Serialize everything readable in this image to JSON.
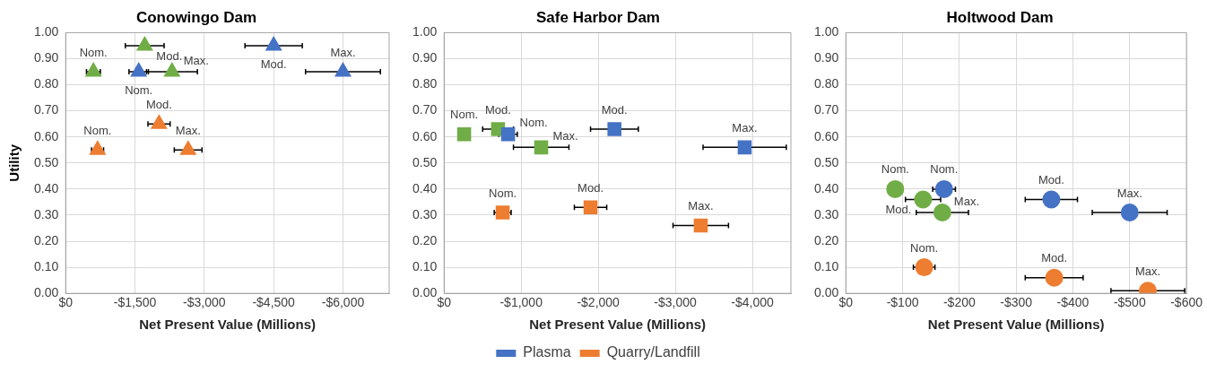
{
  "chart_data": [
    {
      "type": "scatter",
      "title": "Conowingo Dam",
      "xlabel": "Net Present Value (Millions)",
      "ylabel": "Utility",
      "marker": "triangle",
      "grid": true,
      "legend": false,
      "xlim": [
        0,
        -7000
      ],
      "xticks": [
        {
          "value": 0,
          "label": "$0"
        },
        {
          "value": -1500,
          "label": "-$1,500"
        },
        {
          "value": -3000,
          "label": "-$3,000"
        },
        {
          "value": -4500,
          "label": "-$4,500"
        },
        {
          "value": -6000,
          "label": "-$6,000"
        }
      ],
      "ylim": [
        0,
        1
      ],
      "yticks": [
        {
          "value": 0,
          "label": "0.00"
        },
        {
          "value": 0.1,
          "label": "0.10"
        },
        {
          "value": 0.2,
          "label": "0.20"
        },
        {
          "value": 0.3,
          "label": "0.30"
        },
        {
          "value": 0.4,
          "label": "0.40"
        },
        {
          "value": 0.5,
          "label": "0.50"
        },
        {
          "value": 0.6,
          "label": "0.60"
        },
        {
          "value": 0.7,
          "label": "0.70"
        },
        {
          "value": 0.8,
          "label": "0.80"
        },
        {
          "value": 0.9,
          "label": "0.90"
        },
        {
          "value": 1,
          "label": "1.00"
        }
      ],
      "series": [
        {
          "color": "#4472c4",
          "x": [
            -1580,
            -4500,
            -6000
          ],
          "values": [
            0.85,
            0.95,
            0.85
          ],
          "xerrors": [
            210,
            620,
            810
          ]
        },
        {
          "color": "#70ad47",
          "x": [
            -600,
            -1710,
            -2300
          ],
          "values": [
            0.85,
            0.95,
            0.85
          ],
          "xerrors": [
            150,
            420,
            550
          ]
        },
        {
          "color": "#ed7d31",
          "x": [
            -690,
            -2020,
            -2650
          ],
          "values": [
            0.55,
            0.65,
            0.55
          ],
          "xerrors": [
            130,
            240,
            300
          ]
        }
      ],
      "annotations": [
        {
          "text": "Nom.",
          "x": -1580,
          "y": 0.85
        },
        {
          "text": "Mod.",
          "x": -4500,
          "y": 0.95
        },
        {
          "text": "Max.",
          "x": -6000,
          "y": 0.85
        },
        {
          "text": "Nom.",
          "x": -600,
          "y": 0.85
        },
        {
          "text": "Mod.",
          "x": -1710,
          "y": 0.95
        },
        {
          "text": "Max.",
          "x": -2300,
          "y": 0.85
        },
        {
          "text": "Nom.",
          "x": -690,
          "y": 0.55
        },
        {
          "text": "Mod.",
          "x": -2020,
          "y": 0.65
        },
        {
          "text": "Max.",
          "x": -2650,
          "y": 0.55
        }
      ]
    },
    {
      "type": "scatter",
      "title": "Safe Harbor Dam",
      "xlabel": "Net Present Value (Millions)",
      "marker": "square",
      "grid": true,
      "legend": "bottom",
      "xlim": [
        0,
        -4500
      ],
      "xticks": [
        {
          "value": 0,
          "label": "$0"
        },
        {
          "value": -1000,
          "label": "-$1,000"
        },
        {
          "value": -2000,
          "label": "-$2,000"
        },
        {
          "value": -3000,
          "label": "-$3,000"
        },
        {
          "value": -4000,
          "label": "-$4,000"
        }
      ],
      "ylim": [
        0,
        1
      ],
      "yticks": [
        {
          "value": 0,
          "label": "0.00"
        },
        {
          "value": 0.1,
          "label": "0.10"
        },
        {
          "value": 0.2,
          "label": "0.20"
        },
        {
          "value": 0.3,
          "label": "0.30"
        },
        {
          "value": 0.4,
          "label": "0.40"
        },
        {
          "value": 0.5,
          "label": "0.50"
        },
        {
          "value": 0.6,
          "label": "0.60"
        },
        {
          "value": 0.7,
          "label": "0.70"
        },
        {
          "value": 0.8,
          "label": "0.80"
        },
        {
          "value": 0.9,
          "label": "0.90"
        },
        {
          "value": 1,
          "label": "1.00"
        }
      ],
      "series": [
        {
          "name": "Plasma",
          "color": "#4472c4",
          "x": [
            -830,
            -2210,
            -3900
          ],
          "values": [
            0.61,
            0.63,
            0.56
          ],
          "xerrors": [
            120,
            310,
            540
          ]
        },
        {
          "color": "#70ad47",
          "x": [
            -260,
            -700,
            -1260
          ],
          "values": [
            0.61,
            0.63,
            0.56
          ],
          "xerrors": [
            null,
            200,
            360
          ]
        },
        {
          "name": "Quarry/Landfill",
          "color": "#ed7d31",
          "x": [
            -760,
            -1900,
            -3330
          ],
          "values": [
            0.31,
            0.33,
            0.26
          ],
          "xerrors": [
            110,
            210,
            360
          ]
        }
      ],
      "annotations": [
        {
          "text": "Nom.",
          "x": -830,
          "y": 0.61
        },
        {
          "text": "Mod.",
          "x": -2210,
          "y": 0.63
        },
        {
          "text": "Max.",
          "x": -3900,
          "y": 0.56
        },
        {
          "text": "Nom.",
          "x": -260,
          "y": 0.61
        },
        {
          "text": "Mod.",
          "x": -700,
          "y": 0.63
        },
        {
          "text": "Max.",
          "x": -1260,
          "y": 0.56
        },
        {
          "text": "Nom.",
          "x": -760,
          "y": 0.31
        },
        {
          "text": "Mod.",
          "x": -1900,
          "y": 0.33
        },
        {
          "text": "Max.",
          "x": -3330,
          "y": 0.26
        }
      ]
    },
    {
      "type": "scatter",
      "title": "Holtwood Dam",
      "xlabel": "Net Present Value (Millions)",
      "marker": "circle",
      "grid": true,
      "legend": false,
      "xlim": [
        0,
        -600
      ],
      "xticks": [
        {
          "value": 0,
          "label": "$0"
        },
        {
          "value": -100,
          "label": "-$100"
        },
        {
          "value": -200,
          "label": "-$200"
        },
        {
          "value": -300,
          "label": "-$300"
        },
        {
          "value": -400,
          "label": "-$400"
        },
        {
          "value": -500,
          "label": "-$500"
        },
        {
          "value": -600,
          "label": "-$600"
        }
      ],
      "ylim": [
        0,
        1
      ],
      "yticks": [
        {
          "value": 0,
          "label": "0.00"
        },
        {
          "value": 0.1,
          "label": "0.10"
        },
        {
          "value": 0.2,
          "label": "0.20"
        },
        {
          "value": 0.3,
          "label": "0.30"
        },
        {
          "value": 0.4,
          "label": "0.40"
        },
        {
          "value": 0.5,
          "label": "0.50"
        },
        {
          "value": 0.6,
          "label": "0.60"
        },
        {
          "value": 0.7,
          "label": "0.70"
        },
        {
          "value": 0.8,
          "label": "0.80"
        },
        {
          "value": 0.9,
          "label": "0.90"
        },
        {
          "value": 1,
          "label": "1.00"
        }
      ],
      "series": [
        {
          "color": "#4472c4",
          "x": [
            -173,
            -362,
            -500
          ],
          "values": [
            0.4,
            0.36,
            0.31
          ],
          "xerrors": [
            20,
            46,
            66
          ]
        },
        {
          "color": "#70ad47",
          "x": [
            -87,
            -136,
            -170
          ],
          "values": [
            0.4,
            0.36,
            0.31
          ],
          "xerrors": [
            null,
            31,
            46
          ]
        },
        {
          "color": "#ed7d31",
          "x": [
            -138,
            -367,
            -532
          ],
          "values": [
            0.1,
            0.06,
            0.01
          ],
          "xerrors": [
            19,
            51,
            65
          ]
        }
      ],
      "annotations": [
        {
          "text": "Nom.",
          "x": -173,
          "y": 0.4
        },
        {
          "text": "Mod.",
          "x": -362,
          "y": 0.36
        },
        {
          "text": "Max.",
          "x": -500,
          "y": 0.31
        },
        {
          "text": "Nom.",
          "x": -87,
          "y": 0.4
        },
        {
          "text": "Mod.",
          "x": -136,
          "y": 0.36
        },
        {
          "text": "Max.",
          "x": -170,
          "y": 0.31
        },
        {
          "text": "Nom.",
          "x": -138,
          "y": 0.1
        },
        {
          "text": "Mod.",
          "x": -367,
          "y": 0.06
        },
        {
          "text": "Max.",
          "x": -532,
          "y": 0.01
        }
      ]
    }
  ]
}
